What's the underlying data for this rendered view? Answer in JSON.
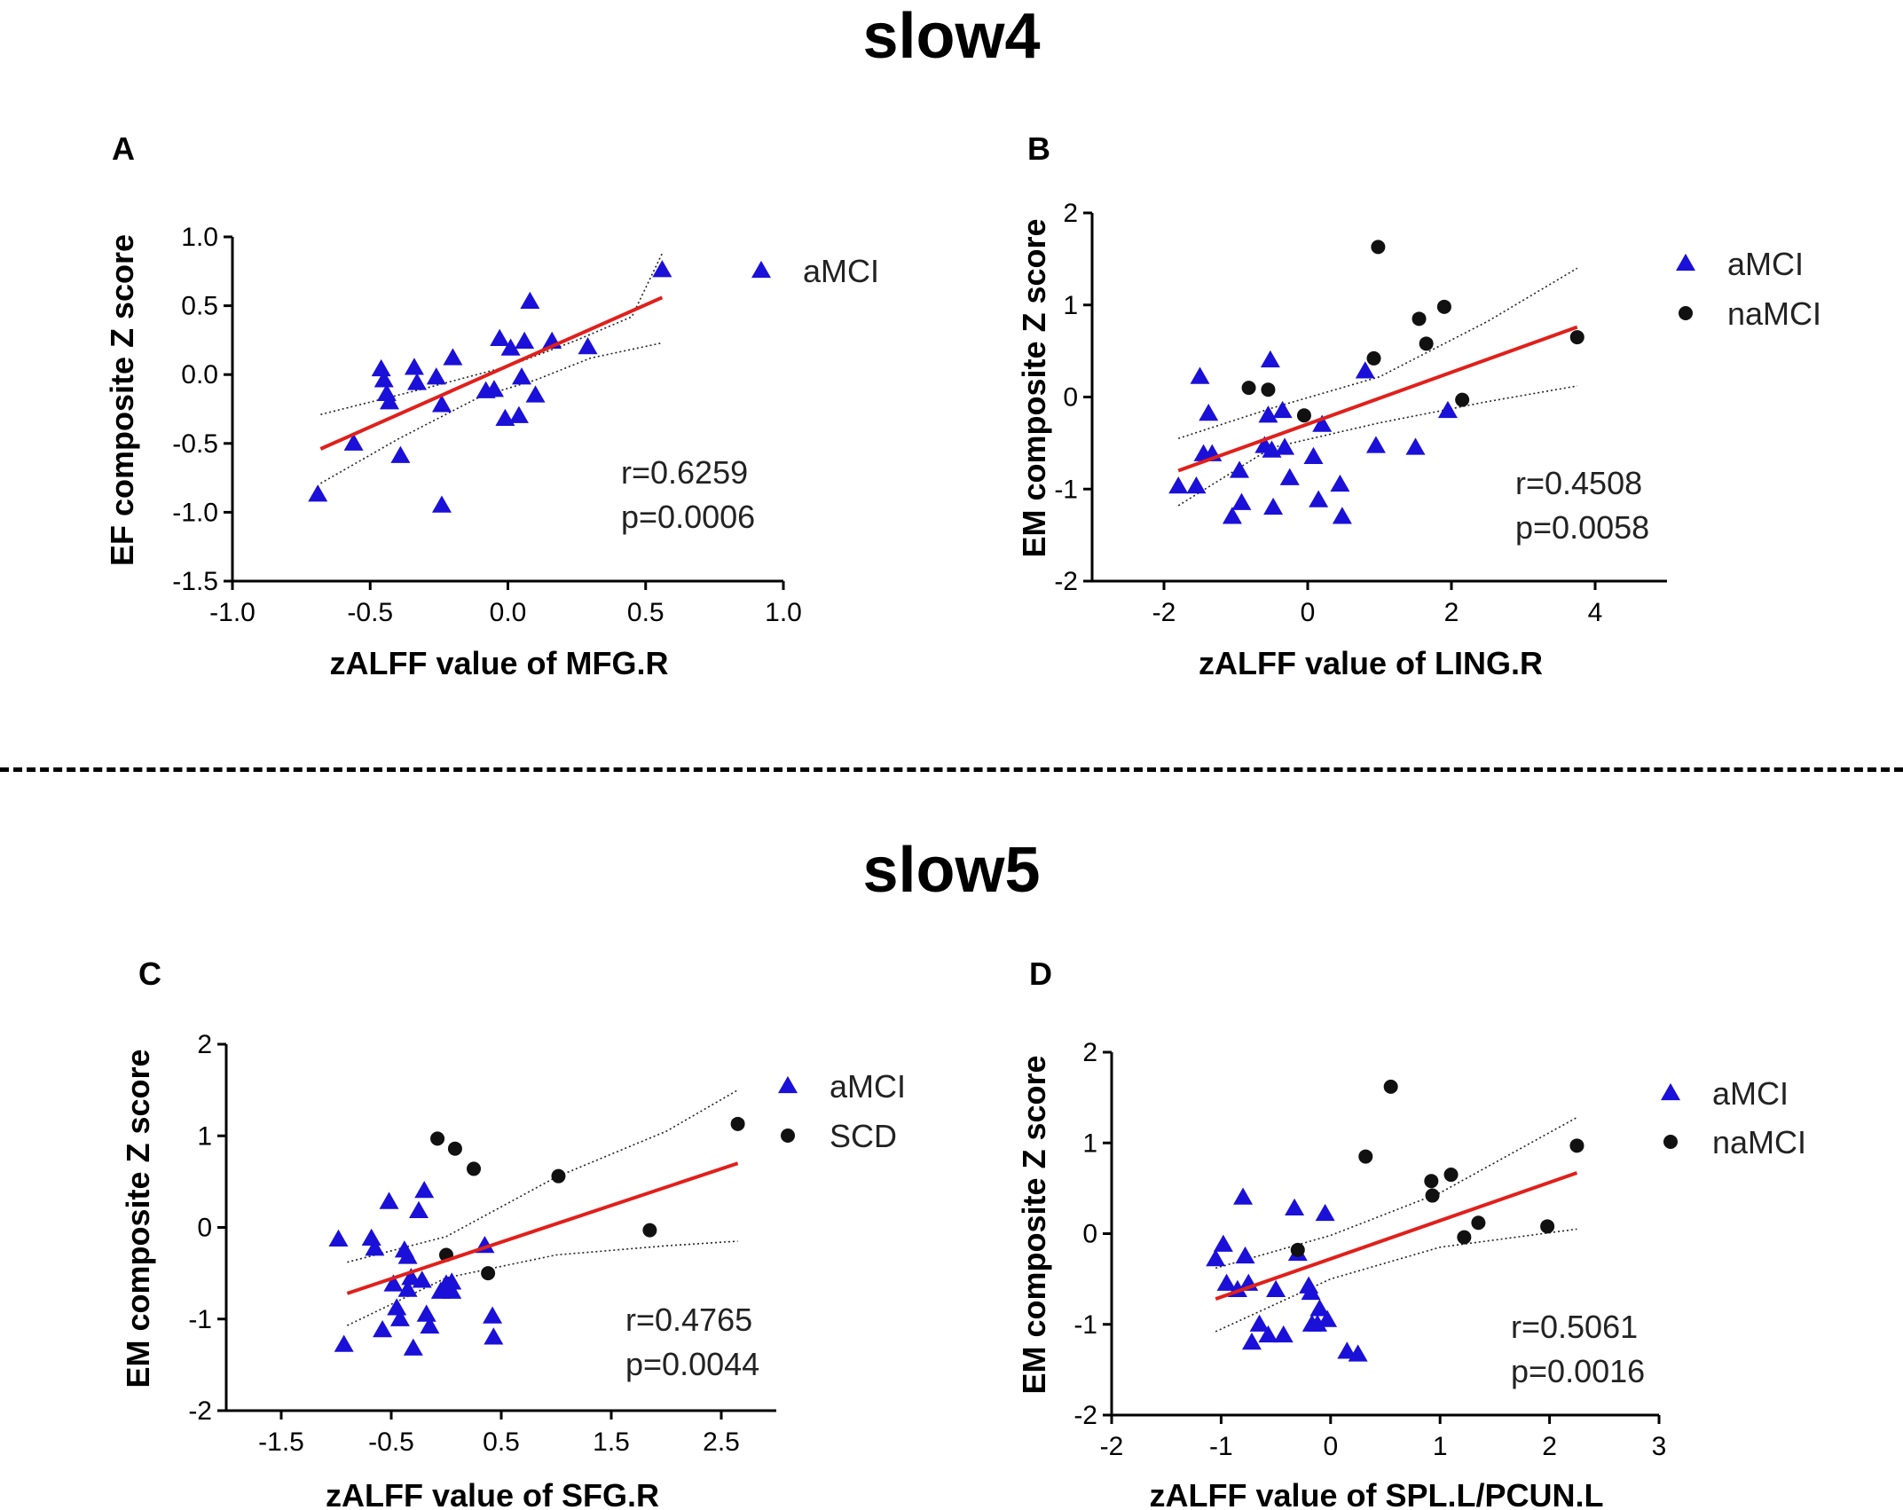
{
  "sections": {
    "top": "slow4",
    "bottom": "slow5"
  },
  "chart_data": [
    {
      "panel": "A",
      "type": "scatter",
      "section": "slow4",
      "xlabel": "zALFF value of MFG.R",
      "ylabel": "EF composite Z score",
      "xlim": [
        -1.0,
        1.0
      ],
      "ylim": [
        -1.5,
        1.0
      ],
      "xticks": [
        "-1.0",
        "-0.5",
        "0.0",
        "0.5",
        "1.0"
      ],
      "xtick_values": [
        -1.0,
        -0.5,
        0.0,
        0.5,
        1.0
      ],
      "yticks": [
        "-1.5",
        "-1.0",
        "-0.5",
        "0.0",
        "0.5",
        "1.0"
      ],
      "ytick_values": [
        -1.5,
        -1.0,
        -0.5,
        0.0,
        0.5,
        1.0
      ],
      "r_text": "r=0.6259",
      "p_text": "p=0.0006",
      "fit": {
        "x": [
          -0.68,
          0.56
        ],
        "y": [
          -0.54,
          0.56
        ],
        "color": "#e0201b"
      },
      "ci_upper": [
        [
          -0.68,
          -0.29
        ],
        [
          -0.3,
          -0.1
        ],
        [
          0.0,
          0.06
        ],
        [
          0.25,
          0.25
        ],
        [
          0.45,
          0.42
        ],
        [
          0.56,
          0.88
        ]
      ],
      "ci_lower": [
        [
          -0.68,
          -0.79
        ],
        [
          -0.4,
          -0.47
        ],
        [
          -0.1,
          -0.16
        ],
        [
          0.1,
          -0.04
        ],
        [
          0.3,
          0.12
        ],
        [
          0.56,
          0.23
        ]
      ],
      "series": [
        {
          "name": "aMCI",
          "marker": "triangle",
          "color": "#1a10d8",
          "points": [
            [
              -0.69,
              -0.87
            ],
            [
              -0.56,
              -0.5
            ],
            [
              -0.46,
              0.04
            ],
            [
              -0.45,
              -0.04
            ],
            [
              -0.44,
              -0.14
            ],
            [
              -0.43,
              -0.2
            ],
            [
              -0.39,
              -0.59
            ],
            [
              -0.34,
              0.05
            ],
            [
              -0.33,
              -0.06
            ],
            [
              -0.26,
              -0.02
            ],
            [
              -0.24,
              -0.22
            ],
            [
              -0.24,
              -0.95
            ],
            [
              -0.2,
              0.12
            ],
            [
              -0.08,
              -0.12
            ],
            [
              -0.05,
              -0.11
            ],
            [
              -0.03,
              0.26
            ],
            [
              -0.01,
              -0.32
            ],
            [
              0.01,
              0.19
            ],
            [
              0.04,
              -0.3
            ],
            [
              0.05,
              -0.02
            ],
            [
              0.06,
              0.24
            ],
            [
              0.08,
              0.53
            ],
            [
              0.1,
              -0.15
            ],
            [
              0.16,
              0.24
            ],
            [
              0.29,
              0.2
            ],
            [
              0.56,
              0.76
            ]
          ]
        }
      ]
    },
    {
      "panel": "B",
      "type": "scatter",
      "section": "slow4",
      "xlabel": "zALFF value of LING.R",
      "ylabel": "EM composite Z score",
      "xlim": [
        -3,
        5
      ],
      "ylim": [
        -2,
        2
      ],
      "xticks": [
        "-2",
        "0",
        "2",
        "4"
      ],
      "xtick_values": [
        -2,
        0,
        2,
        4
      ],
      "yticks": [
        "-2",
        "-1",
        "0",
        "1",
        "2"
      ],
      "ytick_values": [
        -2,
        -1,
        0,
        1,
        2
      ],
      "r_text": "r=0.4508",
      "p_text": "p=0.0058",
      "fit": {
        "x": [
          -1.8,
          3.75
        ],
        "y": [
          -0.8,
          0.76
        ],
        "color": "#e0201b"
      },
      "ci_upper": [
        [
          -1.8,
          -0.45
        ],
        [
          -0.5,
          -0.12
        ],
        [
          1.0,
          0.22
        ],
        [
          2.5,
          0.82
        ],
        [
          3.75,
          1.4
        ]
      ],
      "ci_lower": [
        [
          -1.8,
          -1.18
        ],
        [
          -0.5,
          -0.55
        ],
        [
          1.0,
          -0.28
        ],
        [
          2.5,
          -0.05
        ],
        [
          3.75,
          0.12
        ]
      ],
      "series": [
        {
          "name": "aMCI",
          "marker": "triangle",
          "color": "#1a10d8",
          "points": [
            [
              -1.8,
              -0.97
            ],
            [
              -1.55,
              -0.97
            ],
            [
              -1.5,
              0.22
            ],
            [
              -1.45,
              -0.62
            ],
            [
              -1.38,
              -0.18
            ],
            [
              -1.33,
              -0.62
            ],
            [
              -1.05,
              -1.3
            ],
            [
              -0.95,
              -0.8
            ],
            [
              -0.92,
              -1.15
            ],
            [
              -0.6,
              -0.53
            ],
            [
              -0.55,
              -0.2
            ],
            [
              -0.52,
              0.4
            ],
            [
              -0.5,
              -0.58
            ],
            [
              -0.48,
              -1.2
            ],
            [
              -0.35,
              -0.15
            ],
            [
              -0.32,
              -0.55
            ],
            [
              -0.25,
              -0.88
            ],
            [
              0.08,
              -0.65
            ],
            [
              0.15,
              -1.12
            ],
            [
              0.2,
              -0.3
            ],
            [
              0.45,
              -0.95
            ],
            [
              0.48,
              -1.3
            ],
            [
              0.8,
              0.28
            ],
            [
              0.95,
              -0.53
            ],
            [
              1.5,
              -0.55
            ],
            [
              1.95,
              -0.15
            ]
          ]
        },
        {
          "name": "naMCI",
          "marker": "circle",
          "color": "#111111",
          "points": [
            [
              -0.82,
              0.1
            ],
            [
              -0.55,
              0.08
            ],
            [
              -0.05,
              -0.2
            ],
            [
              0.92,
              0.42
            ],
            [
              0.98,
              1.63
            ],
            [
              1.55,
              0.85
            ],
            [
              1.65,
              0.58
            ],
            [
              1.9,
              0.98
            ],
            [
              2.15,
              -0.03
            ],
            [
              3.75,
              0.65
            ]
          ]
        }
      ]
    },
    {
      "panel": "C",
      "type": "scatter",
      "section": "slow5",
      "xlabel": "zALFF value of SFG.R",
      "ylabel": "EM composite Z score",
      "xlim": [
        -2.0,
        3.0
      ],
      "ylim": [
        -2,
        2
      ],
      "xticks": [
        "-1.5",
        "-0.5",
        "0.5",
        "1.5",
        "2.5"
      ],
      "xtick_values": [
        -1.5,
        -0.5,
        0.5,
        1.5,
        2.5
      ],
      "yticks": [
        "-2",
        "-1",
        "0",
        "1",
        "2"
      ],
      "ytick_values": [
        -2,
        -1,
        0,
        1,
        2
      ],
      "r_text": "r=0.4765",
      "p_text": "p=0.0044",
      "fit": {
        "x": [
          -0.9,
          2.65
        ],
        "y": [
          -0.72,
          0.7
        ],
        "color": "#e0201b"
      },
      "ci_upper": [
        [
          -0.9,
          -0.38
        ],
        [
          0.0,
          -0.1
        ],
        [
          1.0,
          0.55
        ],
        [
          2.0,
          1.05
        ],
        [
          2.65,
          1.5
        ]
      ],
      "ci_lower": [
        [
          -0.9,
          -1.07
        ],
        [
          0.0,
          -0.55
        ],
        [
          1.0,
          -0.3
        ],
        [
          2.0,
          -0.2
        ],
        [
          2.65,
          -0.15
        ]
      ],
      "series": [
        {
          "name": "aMCI",
          "marker": "triangle",
          "color": "#1a10d8",
          "points": [
            [
              -0.98,
              -0.13
            ],
            [
              -0.93,
              -1.28
            ],
            [
              -0.68,
              -0.12
            ],
            [
              -0.65,
              -0.23
            ],
            [
              -0.58,
              -1.12
            ],
            [
              -0.52,
              0.28
            ],
            [
              -0.48,
              -0.62
            ],
            [
              -0.45,
              -0.88
            ],
            [
              -0.42,
              -1.0
            ],
            [
              -0.38,
              -0.25
            ],
            [
              -0.35,
              -0.32
            ],
            [
              -0.35,
              -0.68
            ],
            [
              -0.32,
              -0.55
            ],
            [
              -0.3,
              -1.32
            ],
            [
              -0.25,
              0.18
            ],
            [
              -0.22,
              -0.58
            ],
            [
              -0.2,
              0.4
            ],
            [
              -0.18,
              -0.95
            ],
            [
              -0.15,
              -1.08
            ],
            [
              -0.05,
              -0.7
            ],
            [
              0.0,
              -0.62
            ],
            [
              0.05,
              -0.6
            ],
            [
              0.05,
              -0.7
            ],
            [
              0.35,
              -0.2
            ],
            [
              0.42,
              -0.97
            ],
            [
              0.43,
              -1.2
            ]
          ]
        },
        {
          "name": "SCD",
          "marker": "circle",
          "color": "#111111",
          "points": [
            [
              -0.08,
              0.97
            ],
            [
              0.0,
              -0.3
            ],
            [
              0.08,
              0.86
            ],
            [
              0.25,
              0.64
            ],
            [
              0.38,
              -0.5
            ],
            [
              1.02,
              0.56
            ],
            [
              1.85,
              -0.03
            ],
            [
              2.65,
              1.13
            ]
          ]
        }
      ]
    },
    {
      "panel": "D",
      "type": "scatter",
      "section": "slow5",
      "xlabel": "zALFF value of SPL.L/PCUN.L",
      "ylabel": "EM composite Z score",
      "xlim": [
        -2,
        3
      ],
      "ylim": [
        -2,
        2
      ],
      "xticks": [
        "-2",
        "-1",
        "0",
        "1",
        "2",
        "3"
      ],
      "xtick_values": [
        -2,
        -1,
        0,
        1,
        2,
        3
      ],
      "yticks": [
        "-2",
        "-1",
        "0",
        "1",
        "2"
      ],
      "ytick_values": [
        -2,
        -1,
        0,
        1,
        2
      ],
      "r_text": "r=0.5061",
      "p_text": "p=0.0016",
      "fit": {
        "x": [
          -1.05,
          2.25
        ],
        "y": [
          -0.72,
          0.67
        ],
        "color": "#e0201b"
      },
      "ci_upper": [
        [
          -1.05,
          -0.38
        ],
        [
          0.0,
          -0.02
        ],
        [
          1.0,
          0.45
        ],
        [
          2.25,
          1.28
        ]
      ],
      "ci_lower": [
        [
          -1.05,
          -1.08
        ],
        [
          0.0,
          -0.5
        ],
        [
          1.0,
          -0.15
        ],
        [
          2.25,
          0.05
        ]
      ],
      "series": [
        {
          "name": "aMCI",
          "marker": "triangle",
          "color": "#1a10d8",
          "points": [
            [
              -1.05,
              -0.28
            ],
            [
              -0.98,
              -0.12
            ],
            [
              -0.95,
              -0.55
            ],
            [
              -0.85,
              -0.62
            ],
            [
              -0.8,
              0.4
            ],
            [
              -0.78,
              -0.25
            ],
            [
              -0.75,
              -0.55
            ],
            [
              -0.72,
              -1.2
            ],
            [
              -0.65,
              -1.0
            ],
            [
              -0.57,
              -1.12
            ],
            [
              -0.5,
              -0.62
            ],
            [
              -0.43,
              -1.12
            ],
            [
              -0.33,
              0.28
            ],
            [
              -0.3,
              -0.22
            ],
            [
              -0.2,
              -0.58
            ],
            [
              -0.18,
              -0.65
            ],
            [
              -0.17,
              -1.0
            ],
            [
              -0.12,
              -1.0
            ],
            [
              -0.1,
              -0.83
            ],
            [
              -0.05,
              0.22
            ],
            [
              -0.03,
              -0.95
            ],
            [
              0.15,
              -1.3
            ],
            [
              0.25,
              -1.33
            ]
          ]
        },
        {
          "name": "naMCI",
          "marker": "circle",
          "color": "#111111",
          "points": [
            [
              -0.3,
              -0.18
            ],
            [
              0.32,
              0.85
            ],
            [
              0.55,
              1.62
            ],
            [
              0.92,
              0.58
            ],
            [
              0.93,
              0.42
            ],
            [
              1.1,
              0.65
            ],
            [
              1.22,
              -0.04
            ],
            [
              1.35,
              0.12
            ],
            [
              1.98,
              0.08
            ],
            [
              2.25,
              0.97
            ]
          ]
        }
      ]
    }
  ]
}
